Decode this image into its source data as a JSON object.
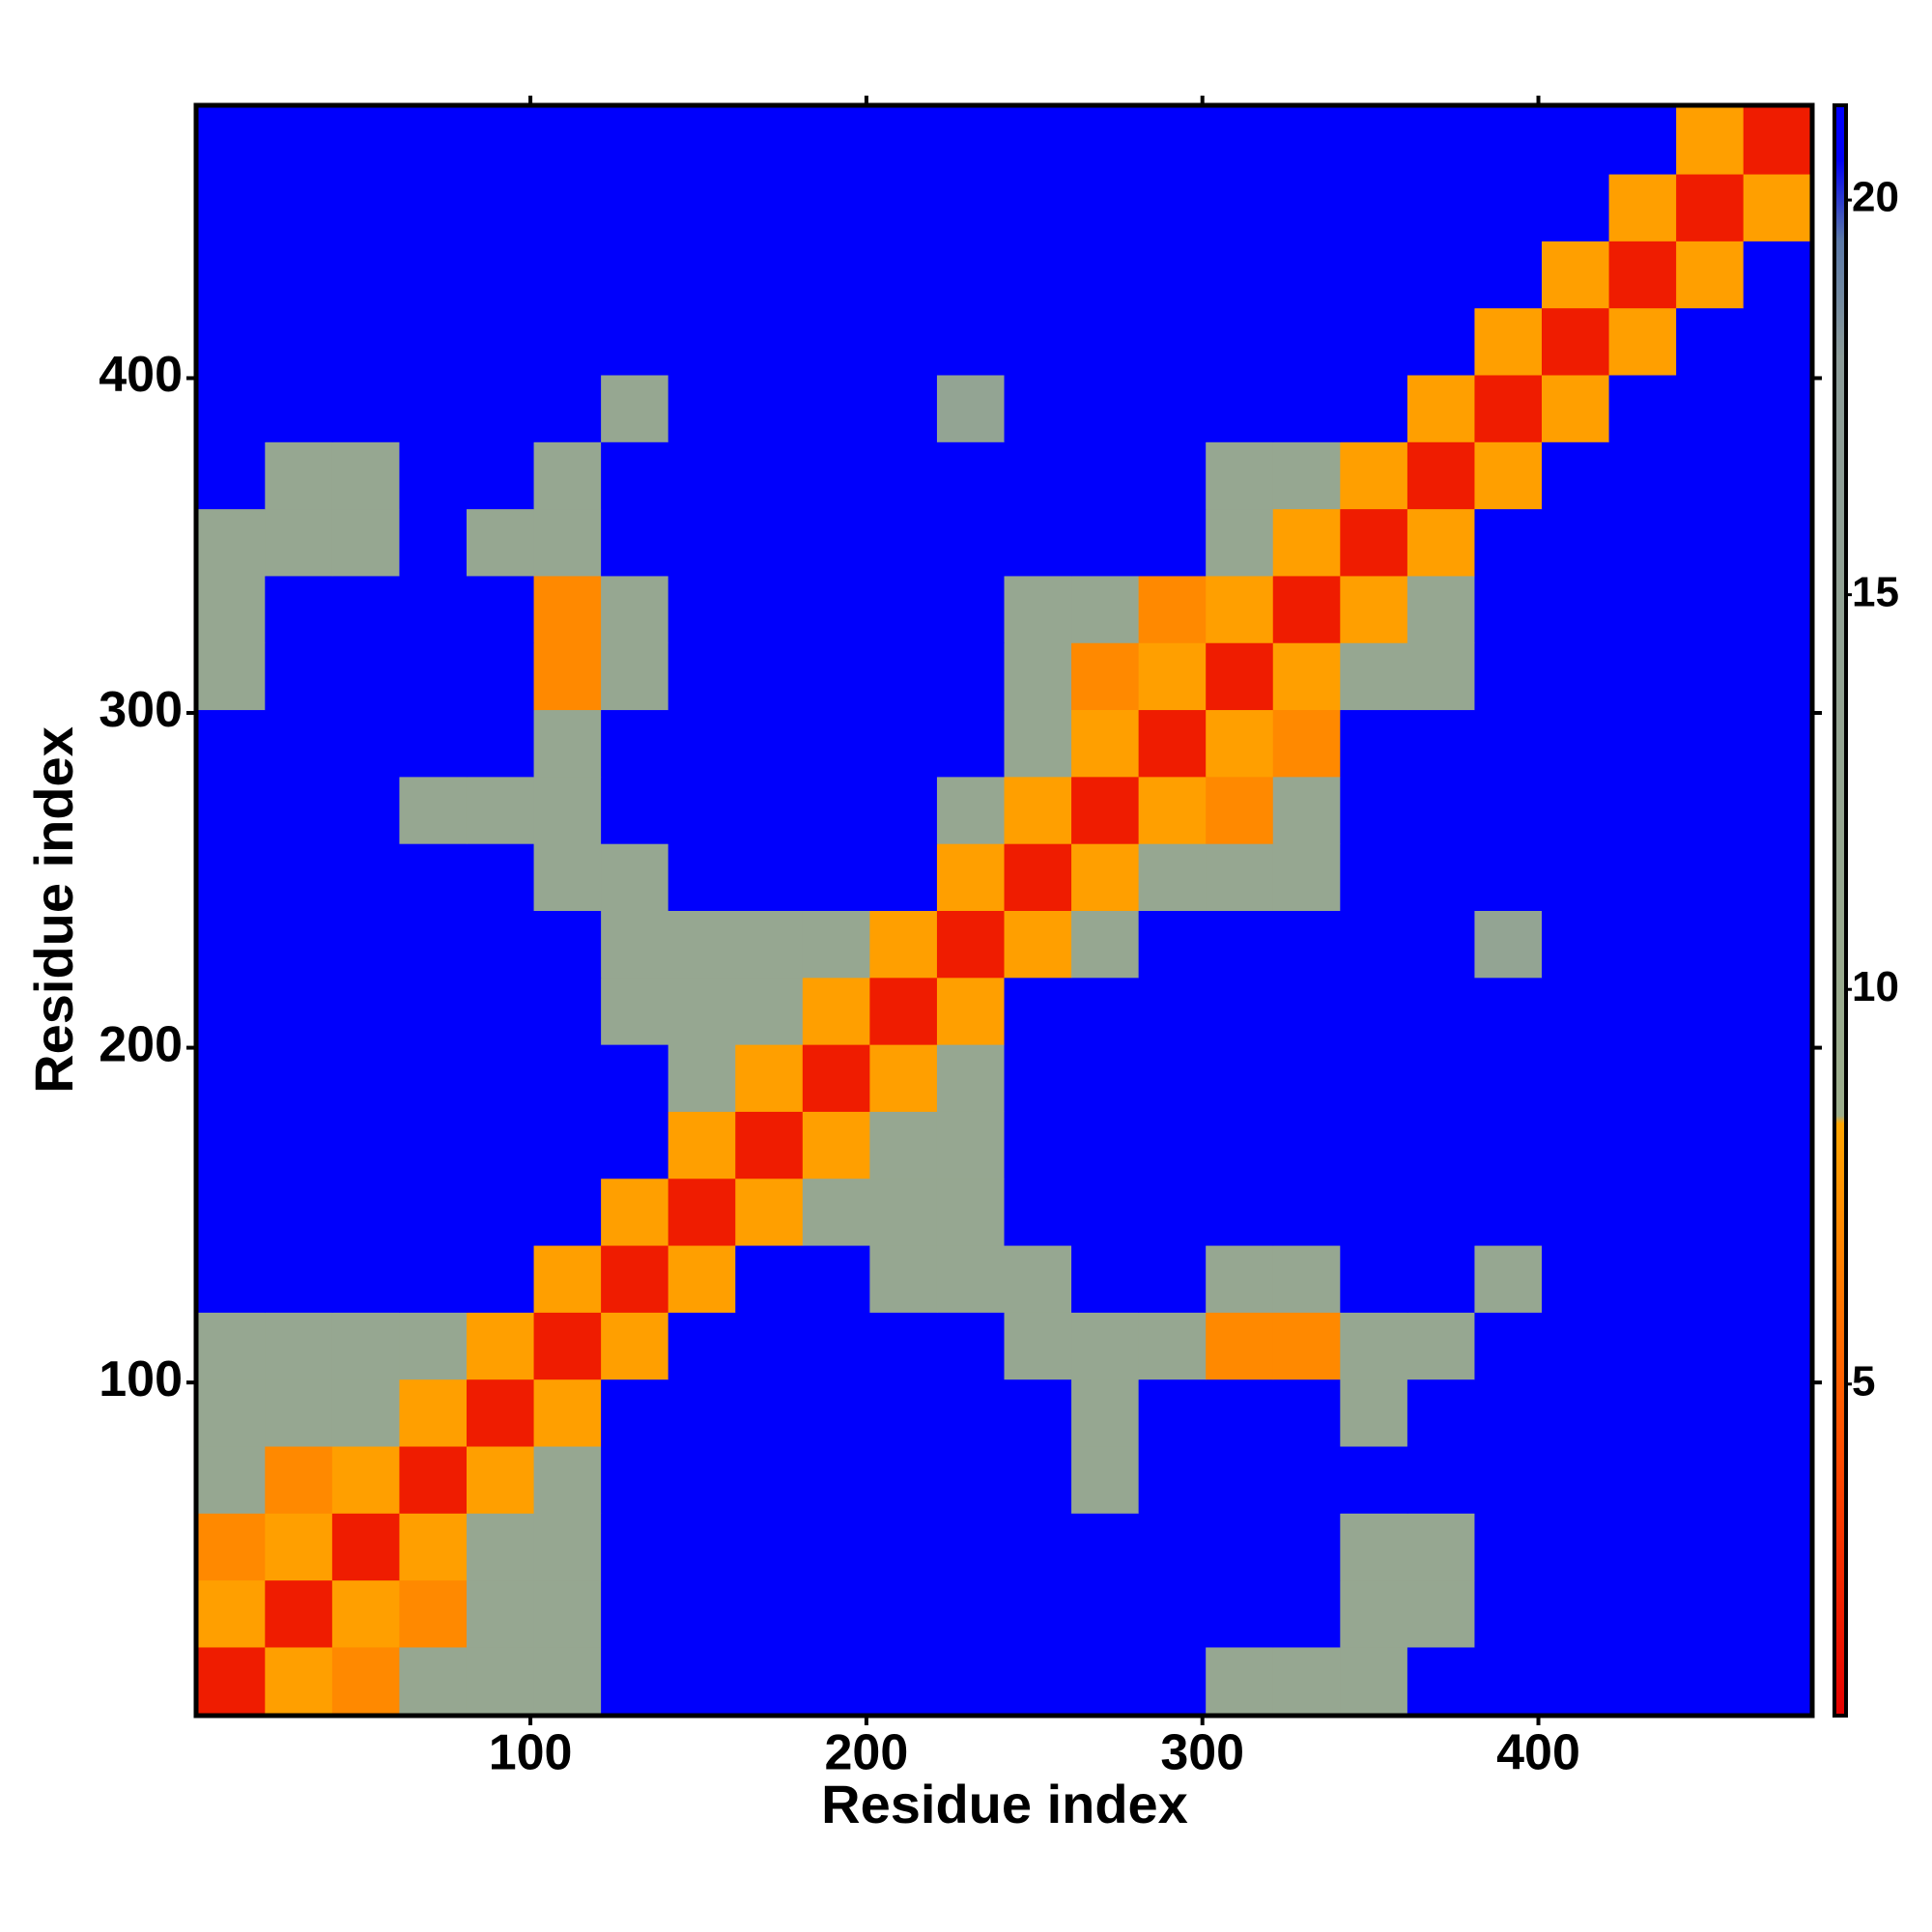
{
  "chart_data": {
    "type": "heatmap",
    "x_label": "Residue index",
    "y_label": "Residue index",
    "bins": [
      1,
      21,
      41,
      61,
      81,
      101,
      121,
      141,
      161,
      181,
      201,
      221,
      241,
      261,
      281,
      301,
      321,
      341,
      361,
      381,
      401,
      421,
      441,
      461,
      481
    ],
    "xlim": [
      0.5,
      481.5
    ],
    "ylim": [
      0.5,
      481.5
    ],
    "xticks": [
      100,
      200,
      300,
      400
    ],
    "yticks": [
      100,
      200,
      300,
      400
    ],
    "clim": [
      0.8,
      21.2
    ],
    "cticks": [
      5,
      10,
      15,
      20
    ],
    "colorscale": [
      [
        0.8,
        "#e60000"
      ],
      [
        4,
        "#ff4a00"
      ],
      [
        8.3,
        "#ffa500"
      ],
      [
        8.4,
        "#9cae8c"
      ],
      [
        18,
        "#8c9c98"
      ],
      [
        19.5,
        "#5a78a8"
      ],
      [
        20.5,
        "#0000f4"
      ],
      [
        21.2,
        "#0000ff"
      ]
    ],
    "z": [
      [
        2,
        8,
        7,
        12,
        12,
        12,
        21,
        21,
        21,
        21,
        21,
        21,
        21,
        21,
        21,
        12,
        12,
        12,
        21,
        21,
        21,
        21,
        21,
        21
      ],
      [
        8,
        2,
        8,
        7,
        12,
        12,
        21,
        21,
        21,
        21,
        21,
        21,
        21,
        21,
        21,
        21,
        21,
        12,
        12,
        21,
        21,
        21,
        21,
        21
      ],
      [
        7,
        8,
        2,
        8,
        12,
        12,
        21,
        21,
        21,
        21,
        21,
        21,
        21,
        21,
        21,
        21,
        21,
        12,
        12,
        21,
        21,
        21,
        21,
        21
      ],
      [
        12,
        7,
        8,
        2,
        8,
        12,
        21,
        21,
        21,
        21,
        21,
        21,
        21,
        12,
        21,
        21,
        21,
        21,
        21,
        21,
        21,
        21,
        21,
        21
      ],
      [
        12,
        12,
        12,
        8,
        2,
        8,
        21,
        21,
        21,
        21,
        21,
        21,
        21,
        12,
        21,
        21,
        21,
        12,
        21,
        21,
        21,
        21,
        21,
        21
      ],
      [
        12,
        12,
        12,
        12,
        8,
        2,
        8,
        21,
        21,
        21,
        21,
        21,
        12,
        12,
        12,
        7,
        7,
        12,
        12,
        21,
        21,
        21,
        21,
        21
      ],
      [
        21,
        21,
        21,
        21,
        21,
        8,
        2,
        8,
        21,
        21,
        12,
        12,
        12,
        21,
        21,
        12,
        12,
        21,
        21,
        12,
        21,
        21,
        21,
        21
      ],
      [
        21,
        21,
        21,
        21,
        21,
        21,
        8,
        2,
        8,
        12,
        12,
        12,
        21,
        21,
        21,
        21,
        21,
        21,
        21,
        21,
        21,
        21,
        21,
        21
      ],
      [
        21,
        21,
        21,
        21,
        21,
        21,
        21,
        8,
        2,
        8,
        12,
        12,
        21,
        21,
        21,
        21,
        21,
        21,
        21,
        21,
        21,
        21,
        21,
        21
      ],
      [
        21,
        21,
        21,
        21,
        21,
        21,
        21,
        12,
        8,
        2,
        8,
        12,
        21,
        21,
        21,
        21,
        21,
        21,
        21,
        21,
        21,
        21,
        21,
        21
      ],
      [
        21,
        21,
        21,
        21,
        21,
        21,
        12,
        12,
        12,
        8,
        2,
        8,
        21,
        21,
        21,
        21,
        21,
        21,
        21,
        21,
        21,
        21,
        21,
        21
      ],
      [
        21,
        21,
        21,
        21,
        21,
        21,
        12,
        12,
        12,
        12,
        8,
        2,
        8,
        12,
        21,
        21,
        21,
        21,
        21,
        14,
        21,
        21,
        21,
        21
      ],
      [
        21,
        21,
        21,
        21,
        21,
        12,
        12,
        21,
        21,
        21,
        21,
        8,
        2,
        8,
        12,
        12,
        12,
        21,
        21,
        21,
        21,
        21,
        21,
        21
      ],
      [
        21,
        21,
        21,
        12,
        12,
        12,
        21,
        21,
        21,
        21,
        21,
        12,
        8,
        2,
        8,
        7,
        12,
        21,
        21,
        21,
        21,
        21,
        21,
        21
      ],
      [
        21,
        21,
        21,
        21,
        21,
        12,
        21,
        21,
        21,
        21,
        21,
        21,
        12,
        8,
        2,
        8,
        7,
        21,
        21,
        21,
        21,
        21,
        21,
        21
      ],
      [
        12,
        21,
        21,
        21,
        21,
        7,
        12,
        21,
        21,
        21,
        21,
        21,
        12,
        7,
        8,
        2,
        8,
        12,
        12,
        21,
        21,
        21,
        21,
        21
      ],
      [
        12,
        21,
        21,
        21,
        21,
        7,
        12,
        21,
        21,
        21,
        21,
        21,
        12,
        12,
        7,
        8,
        2,
        8,
        12,
        21,
        21,
        21,
        21,
        21
      ],
      [
        12,
        12,
        12,
        21,
        12,
        12,
        21,
        21,
        21,
        21,
        21,
        21,
        21,
        21,
        21,
        12,
        8,
        2,
        8,
        21,
        21,
        21,
        21,
        21
      ],
      [
        21,
        12,
        12,
        21,
        21,
        12,
        21,
        21,
        21,
        21,
        21,
        21,
        21,
        21,
        21,
        12,
        12,
        8,
        2,
        8,
        21,
        21,
        21,
        21
      ],
      [
        21,
        21,
        21,
        21,
        21,
        21,
        12,
        21,
        21,
        21,
        21,
        14,
        21,
        21,
        21,
        21,
        21,
        21,
        8,
        2,
        8,
        21,
        21,
        21
      ],
      [
        21,
        21,
        21,
        21,
        21,
        21,
        21,
        21,
        21,
        21,
        21,
        21,
        21,
        21,
        21,
        21,
        21,
        21,
        21,
        8,
        2,
        8,
        21,
        21
      ],
      [
        21,
        21,
        21,
        21,
        21,
        21,
        21,
        21,
        21,
        21,
        21,
        21,
        21,
        21,
        21,
        21,
        21,
        21,
        21,
        21,
        8,
        2,
        8,
        21
      ],
      [
        21,
        21,
        21,
        21,
        21,
        21,
        21,
        21,
        21,
        21,
        21,
        21,
        21,
        21,
        21,
        21,
        21,
        21,
        21,
        21,
        21,
        8,
        2,
        8
      ],
      [
        21,
        21,
        21,
        21,
        21,
        21,
        21,
        21,
        21,
        21,
        21,
        21,
        21,
        21,
        21,
        21,
        21,
        21,
        21,
        21,
        21,
        21,
        8,
        2
      ]
    ]
  }
}
